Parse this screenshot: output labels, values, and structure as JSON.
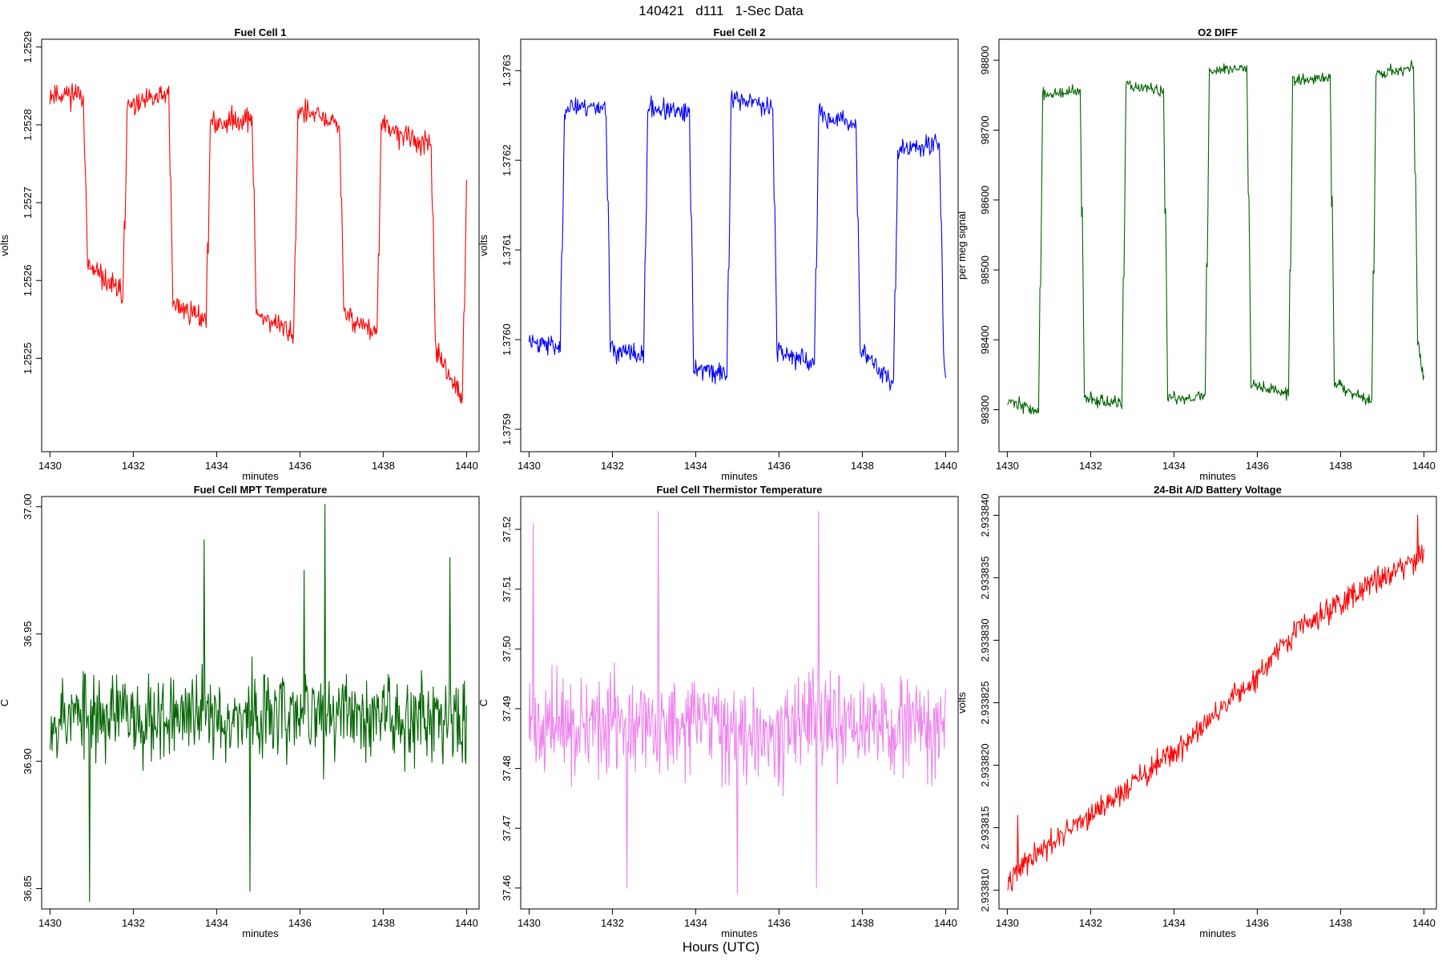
{
  "figure": {
    "title": "140421   d111   1-Sec Data",
    "common_xlabel": "Hours (UTC)"
  },
  "chart_data": [
    {
      "type": "line",
      "title": "Fuel Cell 1",
      "xlabel": "minutes",
      "ylabel": "volts",
      "color": "#ff0000",
      "xlim": [
        1429.8,
        1440.3
      ],
      "ylim": [
        1.25238,
        1.25291
      ],
      "xticks": [
        1430,
        1432,
        1434,
        1436,
        1438,
        1440
      ],
      "yticks": [
        1.2525,
        1.2526,
        1.2527,
        1.2528,
        1.2529
      ],
      "ytick_labels": [
        "1.2525",
        "1.2526",
        "1.2527",
        "1.2528",
        "1.2529"
      ],
      "pattern": "square",
      "x_start": 1430.0,
      "x_end": 1440.0,
      "transitions": [
        1430.85,
        1431.8,
        1432.9,
        1433.8,
        1434.9,
        1435.9,
        1437.0,
        1437.9,
        1439.2,
        1439.95
      ],
      "levels": [
        {
          "from": 1430.0,
          "to": 1430.85,
          "start": 1.25284,
          "end": 1.25284
        },
        {
          "from": 1430.85,
          "to": 1431.8,
          "start": 1.25262,
          "end": 1.25258
        },
        {
          "from": 1431.8,
          "to": 1432.9,
          "start": 1.25282,
          "end": 1.25284
        },
        {
          "from": 1432.9,
          "to": 1433.8,
          "start": 1.25257,
          "end": 1.25255
        },
        {
          "from": 1433.8,
          "to": 1434.9,
          "start": 1.2528,
          "end": 1.25281
        },
        {
          "from": 1434.9,
          "to": 1435.9,
          "start": 1.25256,
          "end": 1.25253
        },
        {
          "from": 1435.9,
          "to": 1437.0,
          "start": 1.25282,
          "end": 1.2528
        },
        {
          "from": 1437.0,
          "to": 1437.9,
          "start": 1.25256,
          "end": 1.25253
        },
        {
          "from": 1437.9,
          "to": 1439.2,
          "start": 1.2528,
          "end": 1.25277
        },
        {
          "from": 1439.2,
          "to": 1439.95,
          "start": 1.25252,
          "end": 1.25244
        },
        {
          "from": 1439.95,
          "to": 1440.0,
          "start": 1.25272,
          "end": 1.25273
        }
      ],
      "noise": 2.4e-05,
      "seed": 11
    },
    {
      "type": "line",
      "title": "Fuel Cell 2",
      "xlabel": "minutes",
      "ylabel": "volts",
      "color": "#0000ff",
      "xlim": [
        1429.8,
        1440.3
      ],
      "ylim": [
        1.375875,
        1.376335
      ],
      "xticks": [
        1430,
        1432,
        1434,
        1436,
        1438,
        1440
      ],
      "yticks": [
        1.3759,
        1.376,
        1.3761,
        1.3762,
        1.3763
      ],
      "ytick_labels": [
        "1.3759",
        "1.3760",
        "1.3761",
        "1.3762",
        "1.3763"
      ],
      "pattern": "square",
      "x_start": 1430.0,
      "x_end": 1440.0,
      "transitions": [
        1430.8,
        1431.9,
        1432.8,
        1433.9,
        1434.8,
        1435.9,
        1436.9,
        1437.9,
        1438.8,
        1439.9
      ],
      "levels": [
        {
          "from": 1430.0,
          "to": 1430.8,
          "start": 1.376,
          "end": 1.37599
        },
        {
          "from": 1430.8,
          "to": 1431.9,
          "start": 1.37626,
          "end": 1.37626
        },
        {
          "from": 1431.9,
          "to": 1432.8,
          "start": 1.37599,
          "end": 1.37598
        },
        {
          "from": 1432.8,
          "to": 1433.9,
          "start": 1.37626,
          "end": 1.37625
        },
        {
          "from": 1433.9,
          "to": 1434.8,
          "start": 1.37597,
          "end": 1.37596
        },
        {
          "from": 1434.8,
          "to": 1435.9,
          "start": 1.37627,
          "end": 1.37626
        },
        {
          "from": 1435.9,
          "to": 1436.9,
          "start": 1.37599,
          "end": 1.37597
        },
        {
          "from": 1436.9,
          "to": 1437.9,
          "start": 1.37625,
          "end": 1.37624
        },
        {
          "from": 1437.9,
          "to": 1438.8,
          "start": 1.37599,
          "end": 1.37595
        },
        {
          "from": 1438.8,
          "to": 1439.9,
          "start": 1.37621,
          "end": 1.37622
        },
        {
          "from": 1439.9,
          "to": 1440.0,
          "start": 1.37602,
          "end": 1.37595
        }
      ],
      "noise": 1.8e-05,
      "seed": 23
    },
    {
      "type": "line",
      "title": "O2 DIFF",
      "xlabel": "minutes",
      "ylabel": "per meg signal",
      "color": "#006400",
      "xlim": [
        1429.8,
        1440.3
      ],
      "ylim": [
        98240,
        98830
      ],
      "xticks": [
        1430,
        1432,
        1434,
        1436,
        1438,
        1440
      ],
      "yticks": [
        98300,
        98400,
        98500,
        98600,
        98700,
        98800
      ],
      "ytick_labels": [
        "98300",
        "98400",
        "98500",
        "98600",
        "98700",
        "98800"
      ],
      "pattern": "square",
      "x_start": 1430.0,
      "x_end": 1440.0,
      "transitions": [
        1430.8,
        1431.8,
        1432.8,
        1433.8,
        1434.8,
        1435.8,
        1436.8,
        1437.8,
        1438.8,
        1439.8
      ],
      "levels": [
        {
          "from": 1430.0,
          "to": 1430.8,
          "start": 98315,
          "end": 98295
        },
        {
          "from": 1430.8,
          "to": 1431.8,
          "start": 98750,
          "end": 98755
        },
        {
          "from": 1431.8,
          "to": 1432.8,
          "start": 98320,
          "end": 98305
        },
        {
          "from": 1432.8,
          "to": 1433.8,
          "start": 98765,
          "end": 98755
        },
        {
          "from": 1433.8,
          "to": 1434.8,
          "start": 98315,
          "end": 98320
        },
        {
          "from": 1434.8,
          "to": 1435.8,
          "start": 98785,
          "end": 98790
        },
        {
          "from": 1435.8,
          "to": 1436.8,
          "start": 98340,
          "end": 98320
        },
        {
          "from": 1436.8,
          "to": 1437.8,
          "start": 98770,
          "end": 98775
        },
        {
          "from": 1437.8,
          "to": 1438.8,
          "start": 98340,
          "end": 98310
        },
        {
          "from": 1438.8,
          "to": 1439.8,
          "start": 98780,
          "end": 98790
        },
        {
          "from": 1439.8,
          "to": 1440.0,
          "start": 98420,
          "end": 98340
        }
      ],
      "noise": 14,
      "seed": 37
    },
    {
      "type": "line",
      "title": "Fuel Cell MPT Temperature",
      "xlabel": "minutes",
      "ylabel": "C",
      "color": "#006400",
      "xlim": [
        1429.8,
        1440.3
      ],
      "ylim": [
        36.842,
        37.004
      ],
      "xticks": [
        1430,
        1432,
        1434,
        1436,
        1438,
        1440
      ],
      "yticks": [
        36.85,
        36.9,
        36.95,
        37.0
      ],
      "ytick_labels": [
        "36.85",
        "36.90",
        "36.95",
        "37.00"
      ],
      "pattern": "noise",
      "x_start": 1430.0,
      "x_end": 1440.0,
      "mean": 36.918,
      "noise": 0.022,
      "spikes": [
        [
          1433.7,
          36.987
        ],
        [
          1436.6,
          37.001
        ],
        [
          1436.1,
          36.975
        ],
        [
          1439.6,
          36.98
        ],
        [
          1430.95,
          36.845
        ],
        [
          1434.8,
          36.849
        ]
      ],
      "seed": 53
    },
    {
      "type": "line",
      "title": "Fuel Cell Thermistor Temperature",
      "xlabel": "minutes",
      "ylabel": "C",
      "color": "#ee82ee",
      "xlim": [
        1429.8,
        1440.3
      ],
      "ylim": [
        37.4565,
        37.5255
      ],
      "xticks": [
        1430,
        1432,
        1434,
        1436,
        1438,
        1440
      ],
      "yticks": [
        37.46,
        37.47,
        37.48,
        37.49,
        37.5,
        37.51,
        37.52
      ],
      "ytick_labels": [
        "37.46",
        "37.47",
        "37.48",
        "37.49",
        "37.50",
        "37.51",
        "37.52"
      ],
      "pattern": "noise",
      "x_start": 1430.0,
      "x_end": 1440.0,
      "mean": 37.487,
      "noise": 0.0105,
      "spikes": [
        [
          1430.1,
          37.521
        ],
        [
          1433.1,
          37.523
        ],
        [
          1436.95,
          37.523
        ],
        [
          1435.0,
          37.459
        ],
        [
          1432.35,
          37.46
        ],
        [
          1436.9,
          37.46
        ]
      ],
      "seed": 71
    },
    {
      "type": "line",
      "title": "24-Bit A/D Battery Voltage",
      "xlabel": "minutes",
      "ylabel": "volts",
      "color": "#ff0000",
      "xlim": [
        1429.8,
        1440.3
      ],
      "ylim": [
        2.9338085,
        2.9338415
      ],
      "xticks": [
        1430,
        1432,
        1434,
        1436,
        1438,
        1440
      ],
      "yticks": [
        2.93381,
        2.933815,
        2.93382,
        2.933825,
        2.93383,
        2.933835,
        2.93384
      ],
      "ytick_labels": [
        "2.933810",
        "2.933815",
        "2.933820",
        "2.933825",
        "2.933830",
        "2.933835",
        "2.933840"
      ],
      "pattern": "trend",
      "x_start": 1430.0,
      "x_end": 1440.0,
      "trend_points": [
        [
          1430.0,
          2.933811
        ],
        [
          1432.0,
          2.933816
        ],
        [
          1434.0,
          2.933821
        ],
        [
          1436.0,
          2.933827
        ],
        [
          1437.0,
          2.933831
        ],
        [
          1438.0,
          2.933833
        ],
        [
          1440.0,
          2.933837
        ]
      ],
      "noise": 1.2e-06,
      "spikes": [
        [
          1439.85,
          2.93384
        ],
        [
          1430.25,
          2.933816
        ]
      ],
      "seed": 97
    }
  ]
}
